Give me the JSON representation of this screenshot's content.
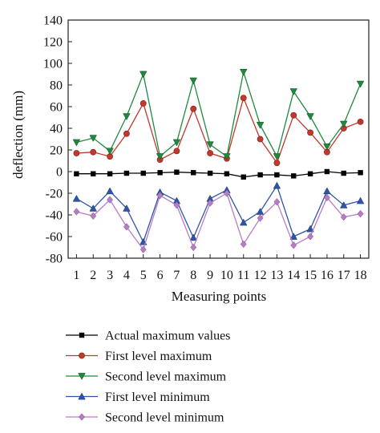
{
  "chart_data": {
    "type": "line",
    "title": "",
    "xlabel": "Measuring points",
    "ylabel": "deflection (mm)",
    "x": [
      1,
      2,
      3,
      4,
      5,
      6,
      7,
      8,
      9,
      10,
      11,
      12,
      13,
      14,
      15,
      16,
      17,
      18
    ],
    "xlim": [
      0.5,
      18.5
    ],
    "ylim": [
      -80,
      140
    ],
    "yticks": [
      -80,
      -60,
      -40,
      -20,
      0,
      20,
      40,
      60,
      80,
      100,
      120,
      140
    ],
    "grid": false,
    "legend_position": "bottom",
    "series": [
      {
        "name": "Actual maximum values",
        "color": "#000000",
        "marker": "square",
        "values": [
          -2,
          -2,
          -2,
          -1.5,
          -1.5,
          -1,
          -0.5,
          -1,
          -1.5,
          -2,
          -5,
          -3,
          -3,
          -4,
          -2,
          0,
          -1.5,
          -1
        ]
      },
      {
        "name": "First level maximum",
        "color": "#c0392b",
        "marker": "circle",
        "values": [
          17,
          18,
          14,
          35,
          63,
          11,
          19,
          58,
          17,
          12,
          68,
          30,
          8,
          52,
          36,
          18,
          40,
          46
        ]
      },
      {
        "name": "Second level maximum",
        "color": "#1e8a3e",
        "marker": "triangle-down",
        "values": [
          27,
          31,
          19,
          51,
          90,
          14,
          27,
          84,
          25,
          14,
          92,
          43,
          14,
          74,
          51,
          23,
          44,
          81
        ]
      },
      {
        "name": "First level minimum",
        "color": "#2e55a8",
        "marker": "triangle-up",
        "values": [
          -25,
          -34,
          -18,
          -34,
          -65,
          -19,
          -27,
          -61,
          -25,
          -17,
          -47,
          -37,
          -13,
          -60,
          -53,
          -18,
          -31,
          -27
        ]
      },
      {
        "name": "Second level minimum",
        "color": "#b77cc7",
        "marker": "diamond",
        "values": [
          -37,
          -41,
          -26,
          -51,
          -72,
          -22,
          -31,
          -70,
          -29,
          -20,
          -67,
          -43,
          -28,
          -68,
          -60,
          -24,
          -42,
          -39
        ]
      }
    ]
  }
}
